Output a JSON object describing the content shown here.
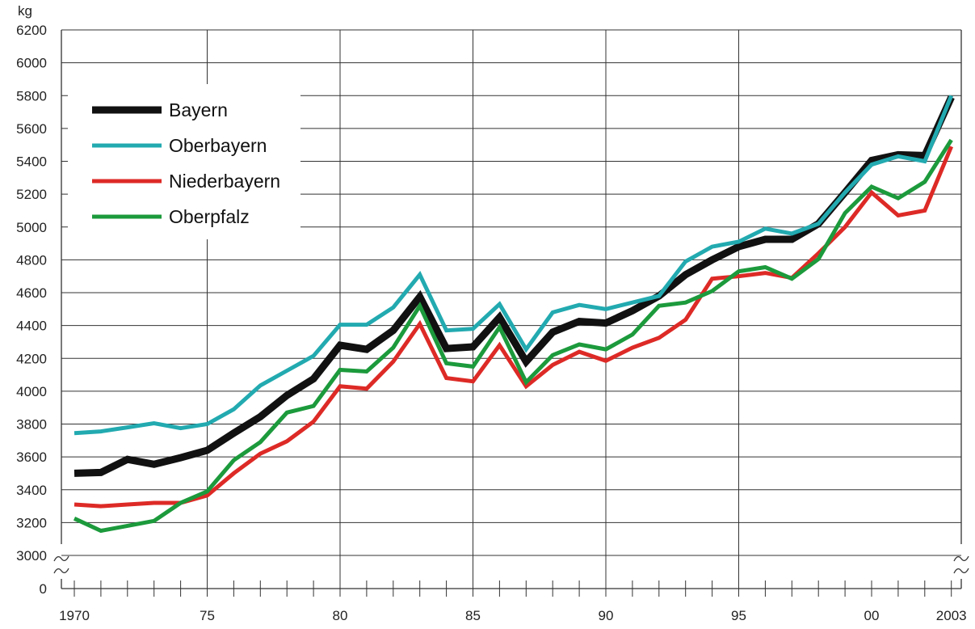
{
  "chart_data": {
    "type": "line",
    "title": "",
    "xlabel": "",
    "ylabel": "kg",
    "x": [
      1970,
      1971,
      1972,
      1973,
      1974,
      1975,
      1976,
      1977,
      1978,
      1979,
      1980,
      1981,
      1982,
      1983,
      1984,
      1985,
      1986,
      1987,
      1988,
      1989,
      1990,
      1991,
      1992,
      1993,
      1994,
      1995,
      1996,
      1997,
      1998,
      1999,
      2000,
      2001,
      2002,
      2003
    ],
    "x_tick_labels": [
      {
        "x": 1970,
        "label": "1970"
      },
      {
        "x": 1975,
        "label": "75"
      },
      {
        "x": 1980,
        "label": "80"
      },
      {
        "x": 1985,
        "label": "85"
      },
      {
        "x": 1990,
        "label": "90"
      },
      {
        "x": 1995,
        "label": "95"
      },
      {
        "x": 2000,
        "label": "00"
      },
      {
        "x": 2003,
        "label": "2003"
      }
    ],
    "y_tick_labels": [
      "0",
      "3000",
      "3200",
      "3400",
      "3600",
      "3800",
      "4000",
      "4200",
      "4400",
      "4600",
      "4800",
      "5000",
      "5200",
      "5400",
      "5600",
      "5800",
      "6000",
      "6200"
    ],
    "ylim": [
      3000,
      6200
    ],
    "y_axis_break": true,
    "grid": true,
    "legend_position": "top-left",
    "series": [
      {
        "name": "Bayern",
        "color": "#111111",
        "width": 9,
        "values": [
          3500,
          3505,
          3585,
          3555,
          3595,
          3640,
          3745,
          3845,
          3975,
          4075,
          4280,
          4255,
          4370,
          4575,
          4260,
          4270,
          4450,
          4180,
          4360,
          4425,
          4415,
          4490,
          4580,
          4710,
          4800,
          4880,
          4925,
          4925,
          5020,
          5210,
          5405,
          5440,
          5435,
          5790
        ]
      },
      {
        "name": "Oberbayern",
        "color": "#22aab0",
        "width": 5,
        "values": [
          3745,
          3755,
          3780,
          3805,
          3775,
          3800,
          3890,
          4035,
          4125,
          4215,
          4405,
          4405,
          4510,
          4710,
          4370,
          4380,
          4530,
          4255,
          4480,
          4525,
          4500,
          4540,
          4580,
          4790,
          4880,
          4910,
          4990,
          4960,
          5020,
          5210,
          5380,
          5430,
          5400,
          5800
        ]
      },
      {
        "name": "Niederbayern",
        "color": "#dd2a26",
        "width": 5,
        "values": [
          3310,
          3300,
          3310,
          3320,
          3320,
          3365,
          3500,
          3620,
          3695,
          3815,
          4030,
          4015,
          4180,
          4410,
          4080,
          4060,
          4280,
          4030,
          4160,
          4240,
          4185,
          4265,
          4325,
          4435,
          4685,
          4700,
          4720,
          4690,
          4840,
          5000,
          5210,
          5070,
          5100,
          5490
        ]
      },
      {
        "name": "Oberpfalz",
        "color": "#1c9a3c",
        "width": 5,
        "values": [
          3225,
          3150,
          3180,
          3210,
          3320,
          3390,
          3580,
          3690,
          3870,
          3910,
          4130,
          4120,
          4265,
          4520,
          4170,
          4150,
          4390,
          4055,
          4220,
          4285,
          4255,
          4345,
          4520,
          4540,
          4610,
          4730,
          4755,
          4685,
          4805,
          5085,
          5245,
          5175,
          5275,
          5530
        ]
      }
    ]
  }
}
